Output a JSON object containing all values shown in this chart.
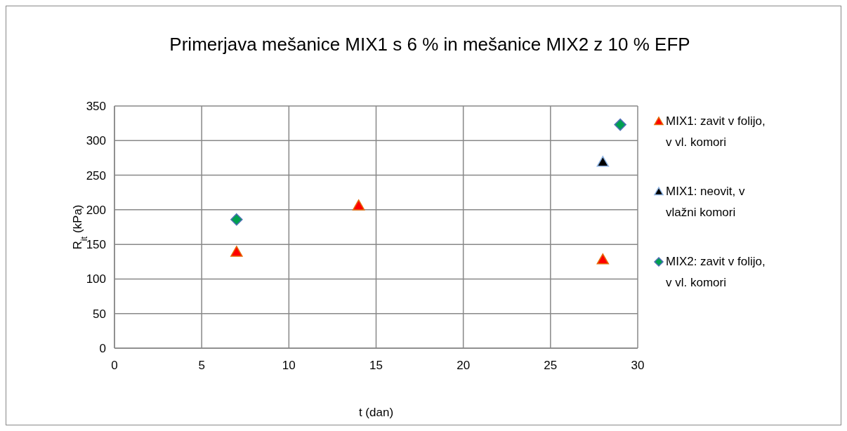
{
  "chart_data": {
    "type": "scatter",
    "title": "Primerjava mešanice MIX1 s 6 % in mešanice MIX2 z 10 % EFP",
    "xlabel": "t (dan)",
    "ylabel": "R$_{it}$  (kPa)",
    "xlim": [
      0,
      30
    ],
    "xticks": [
      0,
      5,
      10,
      15,
      20,
      25,
      30
    ],
    "ylim": [
      0,
      350
    ],
    "yticks": [
      0,
      50,
      100,
      150,
      200,
      250,
      300,
      350
    ],
    "grid": true,
    "legend": "right",
    "series": [
      {
        "name": "MIX1: zavit v folijo, v vl. komori",
        "color": "#ff0000",
        "marker": "triangle",
        "x": [
          7,
          14,
          28
        ],
        "values": [
          139,
          206,
          128
        ]
      },
      {
        "name": "MIX1: neovit, v vlažni komori",
        "color": "#000000",
        "marker": "triangle",
        "x": [
          28
        ],
        "values": [
          269
        ]
      },
      {
        "name": "MIX2: zavit v folijo, v vl. komori",
        "color": "#00a050",
        "marker": "diamond",
        "x": [
          7,
          29
        ],
        "values": [
          186,
          323
        ]
      }
    ]
  }
}
